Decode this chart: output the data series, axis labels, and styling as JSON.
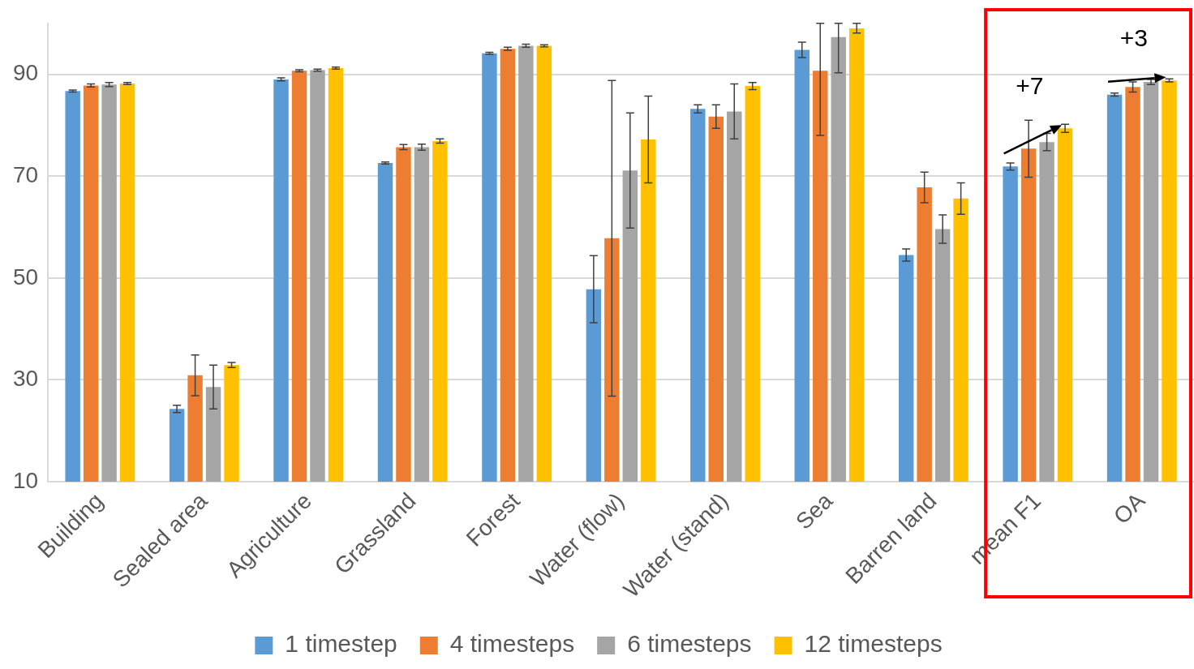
{
  "chart_data": {
    "type": "bar",
    "categories": [
      "Building",
      "Sealed area",
      "Agriculture",
      "Grassland",
      "Forest",
      "Water (flow)",
      "Water (stand)",
      "Sea",
      "Barren land",
      "mean F1",
      "OA"
    ],
    "series": [
      {
        "name": "1 timestep",
        "color": "#5b9bd5",
        "values": [
          86.7,
          24.3,
          89.0,
          72.6,
          94.1,
          47.8,
          83.2,
          94.8,
          54.5,
          71.9,
          86.0
        ],
        "errors": [
          0.2,
          0.7,
          0.3,
          0.2,
          0.2,
          6.6,
          0.8,
          1.5,
          1.2,
          0.7,
          0.3
        ]
      },
      {
        "name": "4 timesteps",
        "color": "#ed7d31",
        "values": [
          87.8,
          30.9,
          90.7,
          75.7,
          95.0,
          57.8,
          81.7,
          90.7,
          67.8,
          75.4,
          87.5
        ],
        "errors": [
          0.3,
          4.0,
          0.2,
          0.5,
          0.3,
          31.0,
          2.3,
          [
            78.0,
            100
          ],
          3.0,
          5.6,
          1.0
        ]
      },
      {
        "name": "6 timesteps",
        "color": "#a5a5a5",
        "values": [
          88.0,
          28.6,
          90.8,
          75.7,
          95.6,
          71.1,
          82.7,
          97.3,
          59.6,
          76.7,
          88.5
        ],
        "errors": [
          0.4,
          4.3,
          0.2,
          0.6,
          0.3,
          11.3,
          5.4,
          [
            90.3,
            100
          ],
          2.8,
          1.7,
          0.5
        ]
      },
      {
        "name": "12 timesteps",
        "color": "#ffc000",
        "values": [
          88.2,
          32.9,
          91.2,
          76.9,
          95.6,
          77.2,
          87.7,
          99.0,
          65.6,
          79.4,
          88.8
        ],
        "errors": [
          0.2,
          0.5,
          0.2,
          0.4,
          0.2,
          8.5,
          0.7,
          [
            98.1,
            100
          ],
          3.1,
          0.8,
          0.3
        ]
      }
    ],
    "ylim": [
      10,
      100
    ],
    "yticks": [
      10,
      30,
      50,
      70,
      90
    ],
    "grid": "y",
    "legend": "bottom",
    "annotations": [
      "+7",
      "+3"
    ]
  }
}
